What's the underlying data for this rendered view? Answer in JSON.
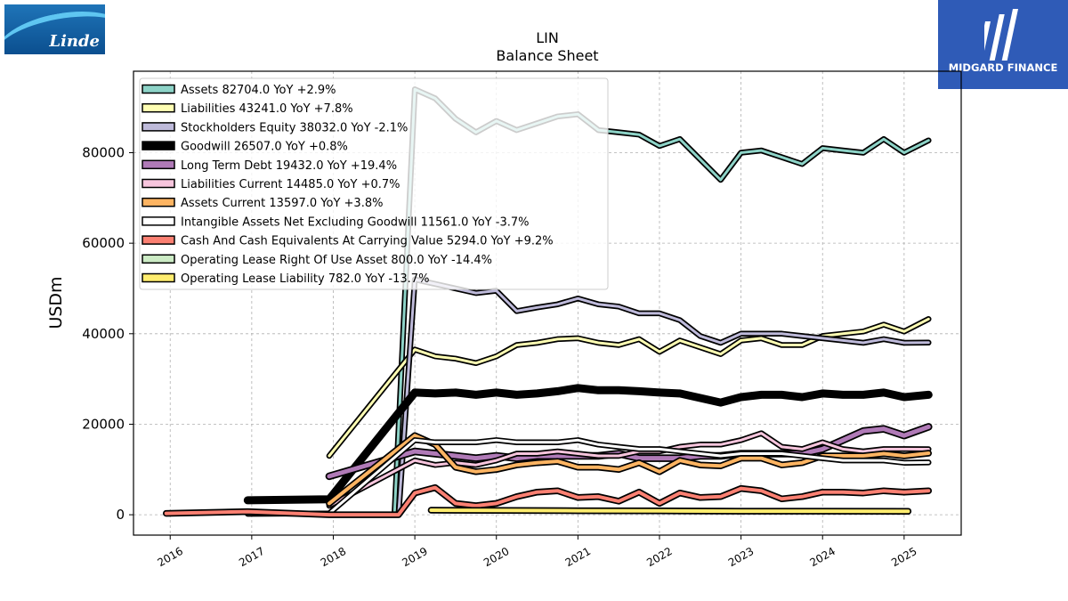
{
  "logos": {
    "left": "Linde",
    "right": "MIDGARD FINANCE"
  },
  "chart_data": {
    "type": "line",
    "title": "LIN",
    "subtitle": "Balance  Sheet",
    "xlabel": "",
    "ylabel": "USDm",
    "xlim": [
      2015.55,
      2025.7
    ],
    "ylim": [
      -4500,
      98000
    ],
    "x_ticks": [
      2016,
      2017,
      2018,
      2019,
      2020,
      2021,
      2022,
      2023,
      2024,
      2025
    ],
    "y_ticks": [
      0,
      20000,
      40000,
      60000,
      80000
    ],
    "y_tick_labels": [
      "0",
      "20000",
      "40000",
      "60000",
      "80000"
    ],
    "grid": true,
    "legend_position": "top-left",
    "series": [
      {
        "name": "Assets",
        "label": "Assets  82704.0 YoY +2.9%",
        "color": "#8dd3c7",
        "width": 3,
        "points": [
          [
            2017.95,
            0
          ],
          [
            2018.75,
            0
          ],
          [
            2019.0,
            94000
          ],
          [
            2019.25,
            92000
          ],
          [
            2019.5,
            87500
          ],
          [
            2019.75,
            84500
          ],
          [
            2020.0,
            87000
          ],
          [
            2020.25,
            85000
          ],
          [
            2020.5,
            86500
          ],
          [
            2020.75,
            88000
          ],
          [
            2021.0,
            88500
          ],
          [
            2021.25,
            85000
          ],
          [
            2021.5,
            84500
          ],
          [
            2021.75,
            84000
          ],
          [
            2022.0,
            81500
          ],
          [
            2022.25,
            83000
          ],
          [
            2022.5,
            78500
          ],
          [
            2022.75,
            74000
          ],
          [
            2023.0,
            80000
          ],
          [
            2023.25,
            80500
          ],
          [
            2023.5,
            79000
          ],
          [
            2023.75,
            77500
          ],
          [
            2024.0,
            81000
          ],
          [
            2024.25,
            80500
          ],
          [
            2024.5,
            80000
          ],
          [
            2024.75,
            83000
          ],
          [
            2025.0,
            80000
          ],
          [
            2025.3,
            82704
          ]
        ]
      },
      {
        "name": "Liabilities",
        "label": "Liabilities  43241.0 YoY +7.8%",
        "color": "#ffffb3",
        "width": 3,
        "points": [
          [
            2017.95,
            13000
          ],
          [
            2019.0,
            36500
          ],
          [
            2019.25,
            35000
          ],
          [
            2019.5,
            34500
          ],
          [
            2019.75,
            33500
          ],
          [
            2020.0,
            35000
          ],
          [
            2020.25,
            37500
          ],
          [
            2020.5,
            38000
          ],
          [
            2020.75,
            38800
          ],
          [
            2021.0,
            39000
          ],
          [
            2021.25,
            38000
          ],
          [
            2021.5,
            37500
          ],
          [
            2021.75,
            38800
          ],
          [
            2022.0,
            36000
          ],
          [
            2022.25,
            38500
          ],
          [
            2022.5,
            37000
          ],
          [
            2022.75,
            35500
          ],
          [
            2023.0,
            38500
          ],
          [
            2023.25,
            39000
          ],
          [
            2023.5,
            37500
          ],
          [
            2023.75,
            37500
          ],
          [
            2024.0,
            39500
          ],
          [
            2024.25,
            40000
          ],
          [
            2024.5,
            40500
          ],
          [
            2024.75,
            42000
          ],
          [
            2025.0,
            40500
          ],
          [
            2025.3,
            43241
          ]
        ]
      },
      {
        "name": "Stockholders Equity",
        "label": "Stockholders Equity  38032.0 YoY -2.1%",
        "color": "#bebada",
        "width": 3,
        "points": [
          [
            2017.95,
            0
          ],
          [
            2018.8,
            0
          ],
          [
            2019.0,
            52000
          ],
          [
            2019.25,
            51000
          ],
          [
            2019.5,
            50000
          ],
          [
            2019.75,
            49000
          ],
          [
            2020.0,
            49500
          ],
          [
            2020.25,
            45000
          ],
          [
            2020.5,
            45800
          ],
          [
            2020.75,
            46500
          ],
          [
            2021.0,
            47800
          ],
          [
            2021.25,
            46500
          ],
          [
            2021.5,
            46000
          ],
          [
            2021.75,
            44500
          ],
          [
            2022.0,
            44500
          ],
          [
            2022.25,
            43000
          ],
          [
            2022.5,
            39500
          ],
          [
            2022.75,
            38000
          ],
          [
            2023.0,
            40000
          ],
          [
            2023.25,
            40000
          ],
          [
            2023.5,
            40000
          ],
          [
            2023.75,
            39500
          ],
          [
            2024.0,
            39000
          ],
          [
            2024.25,
            38500
          ],
          [
            2024.5,
            38000
          ],
          [
            2024.75,
            38800
          ],
          [
            2025.0,
            38000
          ],
          [
            2025.3,
            38032
          ]
        ]
      },
      {
        "name": "Goodwill",
        "label": "Goodwill  26507.0 YoY +0.8%",
        "color": "#000000",
        "width": 9,
        "points": [
          [
            2016.95,
            3200
          ],
          [
            2017.95,
            3400
          ],
          [
            2019.0,
            27000
          ],
          [
            2019.25,
            26800
          ],
          [
            2019.5,
            27000
          ],
          [
            2019.75,
            26500
          ],
          [
            2020.0,
            27000
          ],
          [
            2020.25,
            26500
          ],
          [
            2020.5,
            26800
          ],
          [
            2020.75,
            27300
          ],
          [
            2021.0,
            28000
          ],
          [
            2021.25,
            27500
          ],
          [
            2021.5,
            27500
          ],
          [
            2021.75,
            27300
          ],
          [
            2022.0,
            27000
          ],
          [
            2022.25,
            26800
          ],
          [
            2022.5,
            25800
          ],
          [
            2022.75,
            24800
          ],
          [
            2023.0,
            26000
          ],
          [
            2023.25,
            26500
          ],
          [
            2023.5,
            26500
          ],
          [
            2023.75,
            26000
          ],
          [
            2024.0,
            26800
          ],
          [
            2024.25,
            26500
          ],
          [
            2024.5,
            26500
          ],
          [
            2024.75,
            27000
          ],
          [
            2025.0,
            26000
          ],
          [
            2025.3,
            26507
          ]
        ]
      },
      {
        "name": "Long Term Debt",
        "label": "Long Term Debt  19432.0 YoY +19.4%",
        "color": "#b07ab7",
        "width": 5,
        "points": [
          [
            2017.95,
            8500
          ],
          [
            2019.0,
            14000
          ],
          [
            2019.25,
            13500
          ],
          [
            2019.5,
            13000
          ],
          [
            2019.75,
            12500
          ],
          [
            2020.0,
            13000
          ],
          [
            2020.25,
            12500
          ],
          [
            2020.5,
            13000
          ],
          [
            2020.75,
            13000
          ],
          [
            2021.0,
            13000
          ],
          [
            2021.25,
            13000
          ],
          [
            2021.5,
            13500
          ],
          [
            2021.75,
            12500
          ],
          [
            2022.0,
            12500
          ],
          [
            2022.25,
            12500
          ],
          [
            2022.5,
            13000
          ],
          [
            2022.75,
            13000
          ],
          [
            2023.0,
            13500
          ],
          [
            2023.25,
            13500
          ],
          [
            2023.5,
            13500
          ],
          [
            2023.75,
            13500
          ],
          [
            2024.0,
            14500
          ],
          [
            2024.25,
            16500
          ],
          [
            2024.5,
            18500
          ],
          [
            2024.75,
            19000
          ],
          [
            2025.0,
            17500
          ],
          [
            2025.3,
            19432
          ]
        ]
      },
      {
        "name": "Liabilities Current",
        "label": "Liabilities Current  14485.0 YoY +0.7%",
        "color": "#f7c5dd",
        "width": 3,
        "points": [
          [
            2017.95,
            2000
          ],
          [
            2019.0,
            12000
          ],
          [
            2019.25,
            11000
          ],
          [
            2019.5,
            11500
          ],
          [
            2019.75,
            11000
          ],
          [
            2020.0,
            12000
          ],
          [
            2020.25,
            13500
          ],
          [
            2020.5,
            13500
          ],
          [
            2020.75,
            14000
          ],
          [
            2021.0,
            13500
          ],
          [
            2021.25,
            13000
          ],
          [
            2021.5,
            13000
          ],
          [
            2021.75,
            14000
          ],
          [
            2022.0,
            14000
          ],
          [
            2022.25,
            15000
          ],
          [
            2022.5,
            15500
          ],
          [
            2022.75,
            15500
          ],
          [
            2023.0,
            16500
          ],
          [
            2023.25,
            18000
          ],
          [
            2023.5,
            15000
          ],
          [
            2023.75,
            14500
          ],
          [
            2024.0,
            16000
          ],
          [
            2024.25,
            14500
          ],
          [
            2024.5,
            14000
          ],
          [
            2024.75,
            14500
          ],
          [
            2025.0,
            14500
          ],
          [
            2025.3,
            14485
          ]
        ]
      },
      {
        "name": "Assets Current",
        "label": "Assets Current  13597.0 YoY +3.8%",
        "color": "#fdb462",
        "width": 4,
        "points": [
          [
            2017.95,
            2500
          ],
          [
            2019.0,
            17500
          ],
          [
            2019.25,
            15500
          ],
          [
            2019.5,
            10500
          ],
          [
            2019.75,
            9500
          ],
          [
            2020.0,
            10000
          ],
          [
            2020.25,
            11000
          ],
          [
            2020.5,
            11500
          ],
          [
            2020.75,
            11800
          ],
          [
            2021.0,
            10500
          ],
          [
            2021.25,
            10500
          ],
          [
            2021.5,
            10000
          ],
          [
            2021.75,
            11500
          ],
          [
            2022.0,
            9500
          ],
          [
            2022.25,
            12000
          ],
          [
            2022.5,
            11000
          ],
          [
            2022.75,
            10800
          ],
          [
            2023.0,
            12500
          ],
          [
            2023.25,
            12500
          ],
          [
            2023.5,
            11000
          ],
          [
            2023.75,
            11500
          ],
          [
            2024.0,
            13000
          ],
          [
            2024.25,
            13000
          ],
          [
            2024.5,
            13000
          ],
          [
            2024.75,
            13500
          ],
          [
            2025.0,
            13000
          ],
          [
            2025.3,
            13597
          ]
        ]
      },
      {
        "name": "Intangible Assets Net Excluding Goodwill",
        "label": "Intangible Assets Net Excluding Goodwill  11561.0 YoY -3.7%",
        "color": "#ffffff",
        "width": 3,
        "points": [
          [
            2016.95,
            200
          ],
          [
            2017.95,
            300
          ],
          [
            2019.0,
            16500
          ],
          [
            2019.25,
            16000
          ],
          [
            2019.5,
            16000
          ],
          [
            2019.75,
            16000
          ],
          [
            2020.0,
            16500
          ],
          [
            2020.25,
            16000
          ],
          [
            2020.5,
            16000
          ],
          [
            2020.75,
            16000
          ],
          [
            2021.0,
            16500
          ],
          [
            2021.25,
            15500
          ],
          [
            2021.5,
            15000
          ],
          [
            2021.75,
            14500
          ],
          [
            2022.0,
            14500
          ],
          [
            2022.25,
            14000
          ],
          [
            2022.5,
            13500
          ],
          [
            2022.75,
            13000
          ],
          [
            2023.0,
            13500
          ],
          [
            2023.25,
            13500
          ],
          [
            2023.5,
            13500
          ],
          [
            2023.75,
            13000
          ],
          [
            2024.0,
            12500
          ],
          [
            2024.25,
            12000
          ],
          [
            2024.5,
            12000
          ],
          [
            2024.75,
            12000
          ],
          [
            2025.0,
            11500
          ],
          [
            2025.3,
            11561
          ]
        ]
      },
      {
        "name": "Cash And Cash Equivalents At Carrying Value",
        "label": "Cash And Cash Equivalents At Carrying Value  5294.0 YoY +9.2%",
        "color": "#fb8072",
        "width": 4,
        "points": [
          [
            2015.95,
            300
          ],
          [
            2016.95,
            700
          ],
          [
            2017.95,
            0
          ],
          [
            2018.8,
            0
          ],
          [
            2019.0,
            4800
          ],
          [
            2019.25,
            6000
          ],
          [
            2019.5,
            2500
          ],
          [
            2019.75,
            2000
          ],
          [
            2020.0,
            2500
          ],
          [
            2020.25,
            4000
          ],
          [
            2020.5,
            5000
          ],
          [
            2020.75,
            5300
          ],
          [
            2021.0,
            3800
          ],
          [
            2021.25,
            4000
          ],
          [
            2021.5,
            3000
          ],
          [
            2021.75,
            5000
          ],
          [
            2022.0,
            2500
          ],
          [
            2022.25,
            4800
          ],
          [
            2022.5,
            3800
          ],
          [
            2022.75,
            4000
          ],
          [
            2023.0,
            5800
          ],
          [
            2023.25,
            5300
          ],
          [
            2023.5,
            3500
          ],
          [
            2023.75,
            4000
          ],
          [
            2024.0,
            5000
          ],
          [
            2024.25,
            5000
          ],
          [
            2024.5,
            4800
          ],
          [
            2024.75,
            5300
          ],
          [
            2025.0,
            5000
          ],
          [
            2025.3,
            5294
          ]
        ]
      },
      {
        "name": "Operating Lease Right Of Use Asset",
        "label": "Operating Lease Right Of Use Asset  800.0 YoY -14.4%",
        "color": "#ccebc5",
        "width": 3,
        "points": [
          [
            2019.2,
            1000
          ],
          [
            2020.0,
            1000
          ],
          [
            2021.0,
            950
          ],
          [
            2022.0,
            900
          ],
          [
            2023.0,
            850
          ],
          [
            2024.0,
            850
          ],
          [
            2025.05,
            800
          ]
        ]
      },
      {
        "name": "Operating Lease Liability",
        "label": "Operating Lease Liability  782.0 YoY -13.7%",
        "color": "#ffed6f",
        "width": 4,
        "points": [
          [
            2019.2,
            1000
          ],
          [
            2020.0,
            950
          ],
          [
            2021.0,
            900
          ],
          [
            2022.0,
            850
          ],
          [
            2023.0,
            800
          ],
          [
            2024.0,
            800
          ],
          [
            2025.05,
            782
          ]
        ]
      }
    ]
  }
}
